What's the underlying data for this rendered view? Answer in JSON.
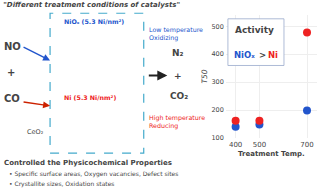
{
  "chart_data": {
    "type": "scatter",
    "title": "\"Different treatment conditions of catalysts\"",
    "xlabel": "Treatment Temp.",
    "ylabel": "T50",
    "x": [
      400,
      500,
      700
    ],
    "series": [
      {
        "color": "#ee2222",
        "values": [
          162,
          162,
          478
        ]
      },
      {
        "color": "#2255cc",
        "values": [
          140,
          148,
          198
        ]
      }
    ],
    "xlim": [
      360,
      740
    ],
    "xticks": [
      400,
      500,
      700
    ],
    "ylim": [
      100,
      540
    ],
    "yticks": [
      100,
      200,
      300,
      400,
      500
    ],
    "annotations": [
      {
        "text": "Activity"
      },
      {
        "text": "NiOₓ",
        "color": "#2255cc"
      },
      {
        "text": ">"
      },
      {
        "text": "Ni",
        "color": "#ee2222"
      },
      {
        "text": "NO"
      },
      {
        "text": "+"
      },
      {
        "text": "CO"
      },
      {
        "text": "CeO₂"
      },
      {
        "text": "N₂"
      },
      {
        "text": "+"
      },
      {
        "text": "CO₂"
      },
      {
        "text": "Low temperature\nOxidizing",
        "color": "#2255cc"
      },
      {
        "text": "High temperature\nReducing",
        "color": "#ee2222"
      },
      {
        "text": "NiOₓ (5.3 Ni/nm²)",
        "color": "#2255cc"
      },
      {
        "text": "Ni (5.3 Ni/nm²)",
        "color": "#ee2222"
      },
      {
        "text": "Controlled the Physicochemical Properties"
      },
      {
        "text": "• Specific surface areas, Oxygen vacancies, Defect sites"
      },
      {
        "text": "• Crystallite sizes, Oxidation states"
      }
    ]
  }
}
